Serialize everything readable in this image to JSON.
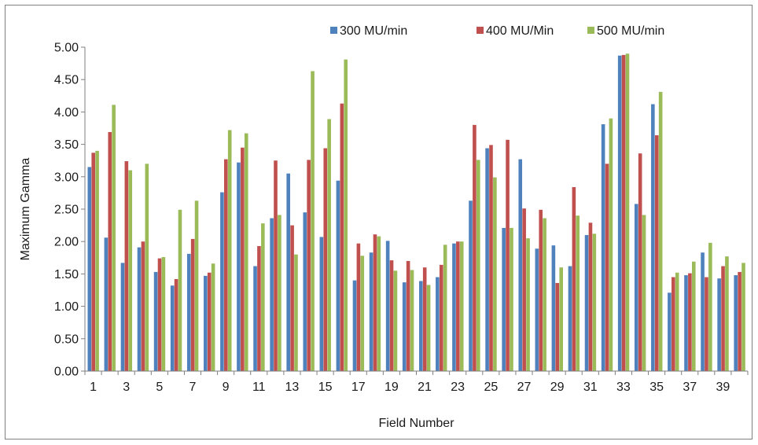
{
  "chart_data": {
    "type": "bar",
    "xlabel": "Field Number",
    "ylabel": "Maximum Gamma",
    "ylim": [
      0,
      5
    ],
    "yticks": [
      "0.00",
      "0.50",
      "1.00",
      "1.50",
      "2.00",
      "2.50",
      "3.00",
      "3.50",
      "4.00",
      "4.50",
      "5.00"
    ],
    "grid": false,
    "legend_position": "top-right",
    "categories": [
      "1",
      "2",
      "3",
      "4",
      "5",
      "6",
      "7",
      "8",
      "9",
      "10",
      "11",
      "12",
      "13",
      "14",
      "15",
      "16",
      "17",
      "18",
      "19",
      "20",
      "21",
      "22",
      "23",
      "24",
      "25",
      "26",
      "27",
      "28",
      "29",
      "30",
      "31",
      "32",
      "33",
      "34",
      "35",
      "36",
      "37",
      "38",
      "39",
      "40"
    ],
    "x_tick_labels": [
      "1",
      "",
      "3",
      "",
      "5",
      "",
      "7",
      "",
      "9",
      "",
      "11",
      "",
      "13",
      "",
      "15",
      "",
      "17",
      "",
      "19",
      "",
      "21",
      "",
      "23",
      "",
      "25",
      "",
      "27",
      "",
      "29",
      "",
      "31",
      "",
      "33",
      "",
      "35",
      "",
      "37",
      "",
      "39",
      ""
    ],
    "series": [
      {
        "name": "300 MU/min",
        "color": "#4f81bd",
        "values": [
          3.15,
          2.06,
          1.67,
          1.91,
          1.53,
          1.32,
          1.81,
          1.47,
          2.76,
          3.22,
          1.62,
          2.36,
          3.05,
          2.45,
          2.07,
          2.94,
          1.4,
          1.83,
          2.01,
          1.37,
          1.39,
          1.45,
          1.97,
          2.63,
          3.44,
          2.21,
          3.27,
          1.89,
          1.94,
          1.62,
          2.1,
          3.81,
          4.87,
          2.58,
          4.12,
          1.21,
          1.48,
          1.83,
          1.43,
          1.48
        ]
      },
      {
        "name": "400 MU/Min",
        "color": "#c0504d",
        "values": [
          3.37,
          3.69,
          3.24,
          2.0,
          1.74,
          1.42,
          2.04,
          1.52,
          3.27,
          3.45,
          1.93,
          3.25,
          2.25,
          3.26,
          3.44,
          4.13,
          1.97,
          2.11,
          1.71,
          1.7,
          1.6,
          1.64,
          2.0,
          3.8,
          3.49,
          3.57,
          2.51,
          2.49,
          1.36,
          2.84,
          2.29,
          3.2,
          4.88,
          3.36,
          3.64,
          1.45,
          1.51,
          1.45,
          1.62,
          1.53
        ]
      },
      {
        "name": "500 MU/min",
        "color": "#9bbb59",
        "values": [
          3.4,
          4.11,
          3.1,
          3.2,
          1.76,
          2.49,
          2.63,
          1.66,
          3.72,
          3.67,
          2.28,
          2.41,
          1.8,
          4.63,
          3.89,
          4.81,
          1.78,
          2.08,
          1.55,
          1.56,
          1.33,
          1.95,
          2.0,
          3.26,
          2.99,
          2.21,
          2.05,
          2.36,
          1.6,
          2.4,
          2.12,
          3.9,
          4.9,
          2.41,
          4.31,
          1.52,
          1.69,
          1.98,
          1.77,
          1.67
        ]
      }
    ]
  }
}
